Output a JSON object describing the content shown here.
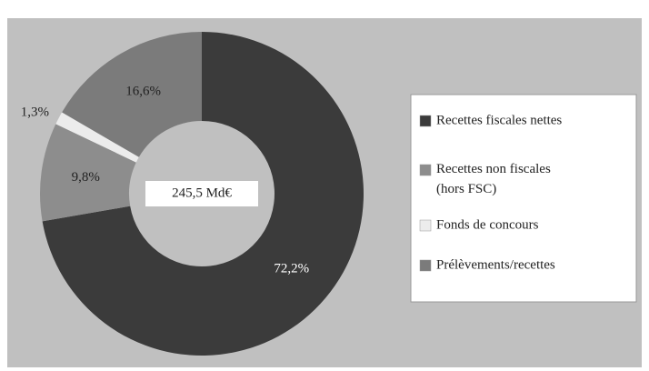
{
  "chart_data": {
    "type": "donut",
    "center_label": "245,5 Md€",
    "categories": [
      "Recettes fiscales nettes",
      "Recettes non fiscales (hors FSC)",
      "Fonds de concours",
      "Prélèvements/recettes"
    ],
    "values": [
      72.2,
      9.8,
      1.3,
      16.6
    ],
    "value_labels": [
      "72,2%",
      "9,8%",
      "1,3%",
      "16,6%"
    ],
    "colors": [
      "#3b3b3b",
      "#8d8d8d",
      "#ececec",
      "#7b7b7b"
    ],
    "legend": "right"
  }
}
